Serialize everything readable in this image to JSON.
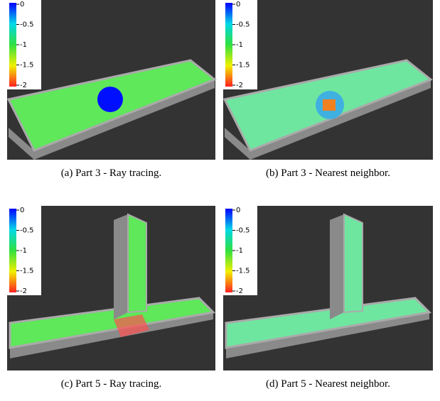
{
  "colorbar": {
    "ticks": [
      "0",
      "-0.5",
      "-1",
      "-1.5",
      "-2"
    ]
  },
  "panels": [
    {
      "caption": "(a) Part 3 - Ray tracing."
    },
    {
      "caption": "(b) Part 3 - Nearest neighbor."
    },
    {
      "caption": "(c) Part 5 - Ray tracing."
    },
    {
      "caption": "(d) Part 5 - Nearest neighbor."
    }
  ]
}
